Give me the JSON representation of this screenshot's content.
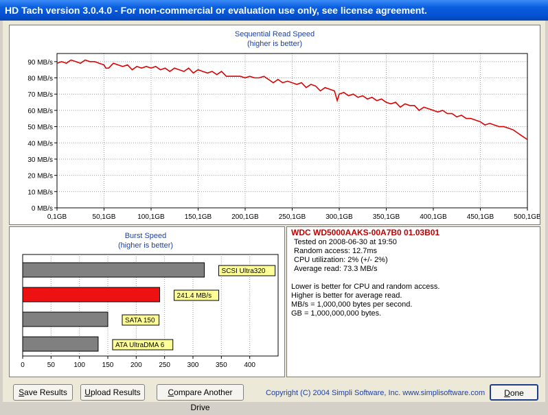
{
  "window": {
    "title": "HD Tach version 3.0.4.0  - For non-commercial or evaluation use only, see license agreement."
  },
  "colors": {
    "accent_red": "#cc0000",
    "bar_gray": "#808080",
    "label_yellow": "#ffff99"
  },
  "chart_data": [
    {
      "type": "line",
      "title": "Sequential Read Speed",
      "subtitle": "(higher is better)",
      "xlabel": "",
      "ylabel": "",
      "ylim": [
        0,
        95
      ],
      "xlim": [
        0.1,
        500.1
      ],
      "grid": true,
      "y_ticks": [
        "0 MB/s",
        "10 MB/s",
        "20 MB/s",
        "30 MB/s",
        "40 MB/s",
        "50 MB/s",
        "60 MB/s",
        "70 MB/s",
        "80 MB/s",
        "90 MB/s"
      ],
      "y_tick_values": [
        0,
        10,
        20,
        30,
        40,
        50,
        60,
        70,
        80,
        90
      ],
      "x_ticks": [
        "0,1GB",
        "50,1GB",
        "100,1GB",
        "150,1GB",
        "200,1GB",
        "250,1GB",
        "300,1GB",
        "350,1GB",
        "400,1GB",
        "450,1GB",
        "500,1GB"
      ],
      "x_tick_values": [
        0.1,
        50.1,
        100.1,
        150.1,
        200.1,
        250.1,
        300.1,
        350.1,
        400.1,
        450.1,
        500.1
      ],
      "series": [
        {
          "x": [
            0.1,
            5,
            10,
            15,
            20,
            25,
            30,
            35,
            40,
            45,
            50,
            52,
            55,
            60,
            65,
            70,
            75,
            80,
            85,
            90,
            95,
            100,
            105,
            110,
            115,
            120,
            125,
            130,
            135,
            140,
            145,
            150,
            155,
            160,
            165,
            170,
            175,
            180,
            185,
            190,
            195,
            200,
            205,
            210,
            215,
            220,
            225,
            230,
            235,
            240,
            245,
            250,
            255,
            260,
            265,
            270,
            275,
            280,
            285,
            290,
            295,
            298,
            300,
            305,
            310,
            315,
            320,
            325,
            330,
            335,
            340,
            345,
            350,
            355,
            360,
            365,
            370,
            375,
            380,
            385,
            390,
            395,
            400,
            405,
            410,
            415,
            420,
            425,
            430,
            435,
            440,
            445,
            450,
            455,
            460,
            465,
            470,
            475,
            480,
            485,
            490,
            495,
            500.1
          ],
          "values": [
            89,
            90,
            89,
            91,
            90,
            89,
            91,
            90,
            90,
            89,
            88,
            86,
            86,
            89,
            88,
            87,
            88,
            85,
            87,
            86,
            87,
            86,
            87,
            85,
            86,
            84,
            86,
            85,
            84,
            86,
            83,
            85,
            84,
            83,
            84,
            82,
            84,
            81,
            81,
            81,
            81,
            80,
            81,
            80,
            80,
            81,
            79,
            77,
            79,
            77,
            78,
            77,
            76,
            77,
            74,
            76,
            75,
            72,
            74,
            73,
            72,
            66,
            70,
            71,
            69,
            70,
            68,
            69,
            67,
            68,
            66,
            67,
            65,
            64,
            65,
            62,
            64,
            63,
            63,
            60,
            62,
            61,
            60,
            59,
            60,
            58,
            58,
            56,
            57,
            55,
            55,
            54,
            53,
            51,
            52,
            51,
            50,
            50,
            49,
            48,
            46,
            44,
            42
          ]
        }
      ]
    },
    {
      "type": "bar",
      "orientation": "horizontal",
      "title": "Burst Speed",
      "subtitle": "(higher is better)",
      "xlabel": "",
      "ylabel": "",
      "xlim": [
        0,
        450
      ],
      "grid": true,
      "x_ticks": [
        "0",
        "50",
        "100",
        "150",
        "200",
        "250",
        "300",
        "350",
        "400"
      ],
      "x_tick_values": [
        0,
        50,
        100,
        150,
        200,
        250,
        300,
        350,
        400
      ],
      "bars": [
        {
          "label": "SCSI Ultra320",
          "value": 320,
          "color": "#808080"
        },
        {
          "label": "241.4 MB/s",
          "value": 241.4,
          "color": "#ee1111"
        },
        {
          "label": "SATA 150",
          "value": 150,
          "color": "#808080"
        },
        {
          "label": "ATA UltraDMA 6",
          "value": 133,
          "color": "#808080"
        }
      ]
    }
  ],
  "info": {
    "drive": "WDC WD5000AAKS-00A7B0 01.03B01",
    "tested": "Tested on 2008-06-30 at 19:50",
    "random_access": "Random access: 12.7ms",
    "cpu": "CPU utilization: 2% (+/- 2%)",
    "avg_read": "Average read: 73.3 MB/s",
    "note1": "Lower is better for CPU and random access.",
    "note2": "Higher is better for average read.",
    "note3": "MB/s = 1,000,000 bytes per second.",
    "note4": "GB = 1,000,000,000 bytes."
  },
  "buttons": {
    "save_u": "S",
    "save_rest": "ave Results",
    "upload_u": "U",
    "upload_rest": "pload Results",
    "compare_u": "C",
    "compare_rest": "ompare Another Drive",
    "done_u": "D",
    "done_rest": "one"
  },
  "footer": {
    "copyright": "Copyright (C) 2004 Simpli Software, Inc. www.simplisoftware.com"
  }
}
